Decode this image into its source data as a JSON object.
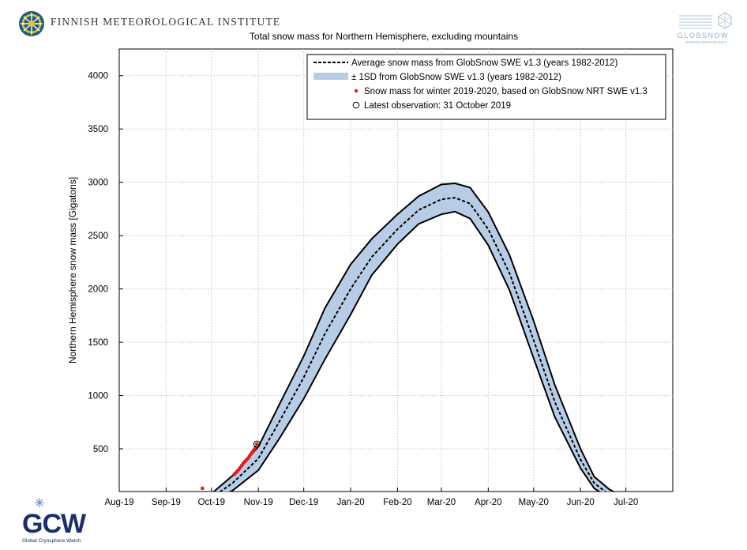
{
  "header": {
    "org_name": "FINNISH METEOROLOGICAL INSTITUTE",
    "globsnow_logo_text": "GLOBSNOW",
    "globsnow_url": "WWW.GLOBSNOW.INFO",
    "gcw_logo_text": "GCW",
    "gcw_caption": "Global Cryosphere Watch"
  },
  "colors": {
    "sd_band": "#b7cde6",
    "observation": "#e0201b",
    "average_line": "#000000",
    "band_edge": "#000000"
  },
  "chart_data": {
    "type": "line",
    "title": "Total snow mass for Northern Hemisphere, excluding mountains",
    "xlabel": "",
    "ylabel": "Northern Hemisphere snow mass [Gigatons]",
    "x_ticks": [
      "Aug-19",
      "Sep-19",
      "Oct-19",
      "Nov-19",
      "Dec-19",
      "Jan-20",
      "Feb-20",
      "Mar-20",
      "Apr-20",
      "May-20",
      "Jun-20",
      "Jul-20"
    ],
    "y_ticks": [
      500,
      1000,
      1500,
      2000,
      2500,
      3000,
      3500,
      4000
    ],
    "xlim": [
      "2019-08-01",
      "2020-08-01"
    ],
    "ylim": [
      100,
      4250
    ],
    "grid": true,
    "legend_position": "top-right",
    "legend": [
      "Average snow mass from GlobSnow SWE v1.3 (years 1982-2012)",
      "± 1SD from GlobSnow SWE v1.3 (years 1982-2012)",
      "Snow mass for winter 2019-2020, based on GlobSnow NRT SWE v1.3",
      "Latest observation: 31 October 2019"
    ],
    "series": [
      {
        "name": "Average snow mass from GlobSnow SWE v1.3 (years 1982-2012)",
        "style": "dashed",
        "x": [
          "2019-10-01",
          "2019-10-15",
          "2019-11-01",
          "2019-11-15",
          "2019-12-01",
          "2019-12-15",
          "2020-01-01",
          "2020-01-15",
          "2020-02-01",
          "2020-02-15",
          "2020-03-01",
          "2020-03-10",
          "2020-03-20",
          "2020-04-01",
          "2020-04-15",
          "2020-05-01",
          "2020-05-15",
          "2020-06-01",
          "2020-06-10",
          "2020-06-20",
          "2020-06-28"
        ],
        "y": [
          40,
          180,
          410,
          760,
          1170,
          1580,
          2000,
          2300,
          2560,
          2740,
          2840,
          2855,
          2800,
          2560,
          2150,
          1520,
          940,
          400,
          180,
          70,
          40
        ]
      },
      {
        "name": "± 1SD from GlobSnow SWE v1.3 (years 1982-2012)",
        "style": "band",
        "x": [
          "2019-10-01",
          "2019-10-15",
          "2019-11-01",
          "2019-11-15",
          "2019-12-01",
          "2019-12-15",
          "2020-01-01",
          "2020-01-15",
          "2020-02-01",
          "2020-02-15",
          "2020-03-01",
          "2020-03-10",
          "2020-03-20",
          "2020-04-01",
          "2020-04-15",
          "2020-05-01",
          "2020-05-15",
          "2020-06-01",
          "2020-06-10",
          "2020-06-20",
          "2020-06-28"
        ],
        "upper": [
          80,
          250,
          520,
          920,
          1370,
          1820,
          2230,
          2470,
          2700,
          2870,
          2980,
          2990,
          2950,
          2720,
          2320,
          1700,
          1100,
          500,
          240,
          120,
          60
        ],
        "lower": [
          10,
          110,
          300,
          600,
          970,
          1340,
          1760,
          2130,
          2420,
          2610,
          2700,
          2725,
          2660,
          2410,
          1990,
          1350,
          800,
          320,
          130,
          40,
          20
        ]
      },
      {
        "name": "Snow mass for winter 2019-2020, based on GlobSnow NRT SWE v1.3",
        "style": "points",
        "x": [
          "2019-09-25",
          "2019-10-16",
          "2019-10-17",
          "2019-10-18",
          "2019-10-19",
          "2019-10-20",
          "2019-10-21",
          "2019-10-22",
          "2019-10-23",
          "2019-10-24",
          "2019-10-25",
          "2019-10-26",
          "2019-10-27",
          "2019-10-28",
          "2019-10-29",
          "2019-10-30",
          "2019-10-31"
        ],
        "y": [
          130,
          260,
          275,
          290,
          305,
          325,
          345,
          365,
          380,
          395,
          410,
          430,
          450,
          470,
          490,
          515,
          545
        ]
      },
      {
        "name": "Latest observation: 31 October 2019",
        "style": "circle",
        "x": [
          "2019-10-31"
        ],
        "y": [
          545
        ]
      }
    ]
  }
}
